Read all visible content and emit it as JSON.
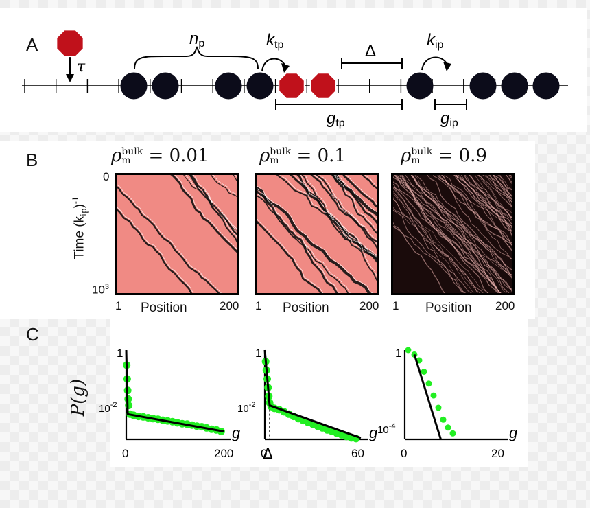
{
  "panel_a": {
    "letter": "A",
    "labels": {
      "tau": "τ",
      "n": "n",
      "n_sub": "p",
      "k_tp": "k",
      "k_tp_sub": "tp",
      "delta": "Δ",
      "k_ip": "k",
      "k_ip_sub": "ip",
      "g_tp": "g",
      "g_tp_sub": "tp",
      "g_ip": "g",
      "g_ip_sub": "ip"
    },
    "colors": {
      "octagon": "#c0111b",
      "particle": "#0c0c1a"
    }
  },
  "panel_b": {
    "letter": "B",
    "y_axis_label": "Time (k",
    "y_axis_sub": "ip",
    "y_axis_tail": ")",
    "y_axis_sup": "-1",
    "y_tick_top": "0",
    "y_tick_bottom": "10",
    "y_tick_bottom_sup": "3",
    "kymographs": [
      {
        "rho_symbol": "ρ",
        "rho_sup": "bulk",
        "rho_sub": "m",
        "value": "= 0.01",
        "xlabel": "Position",
        "x_left": "1",
        "x_right": "200",
        "bg": "#f08a84"
      },
      {
        "rho_symbol": "ρ",
        "rho_sup": "bulk",
        "rho_sub": "m",
        "value": "= 0.1",
        "xlabel": "Position",
        "x_left": "1",
        "x_right": "200",
        "bg": "#f08a84"
      },
      {
        "rho_symbol": "ρ",
        "rho_sup": "bulk",
        "rho_sub": "m",
        "value": "= 0.9",
        "xlabel": "Position",
        "x_left": "1",
        "x_right": "200",
        "bg": "#1a0b0b"
      }
    ]
  },
  "panel_c": {
    "letter": "C",
    "ylabel": "P(g)",
    "delta_label": "Δ",
    "colors": {
      "points": "#22ee22",
      "fit": "#000000"
    }
  },
  "chart_data": [
    {
      "type": "scatter",
      "title": "",
      "xlabel": "g",
      "ylabel": "P(g)",
      "y_scale": "log",
      "x_range": [
        0,
        200
      ],
      "y_range": [
        0.0008,
        1
      ],
      "x_tick_labels": [
        "0",
        "200"
      ],
      "y_tick_labels": [
        "1",
        "10-2"
      ],
      "points": [
        [
          1,
          0.3
        ],
        [
          2,
          0.1
        ],
        [
          3,
          0.04
        ],
        [
          4,
          0.02
        ],
        [
          5,
          0.012
        ],
        [
          8,
          0.006
        ],
        [
          15,
          0.0055
        ],
        [
          25,
          0.005
        ],
        [
          35,
          0.0048
        ],
        [
          45,
          0.0045
        ],
        [
          55,
          0.0042
        ],
        [
          65,
          0.004
        ],
        [
          75,
          0.0037
        ],
        [
          85,
          0.0035
        ],
        [
          95,
          0.0033
        ],
        [
          105,
          0.003
        ],
        [
          115,
          0.0028
        ],
        [
          125,
          0.0027
        ],
        [
          135,
          0.0025
        ],
        [
          145,
          0.0023
        ],
        [
          155,
          0.0022
        ],
        [
          165,
          0.002
        ],
        [
          175,
          0.0018
        ],
        [
          185,
          0.0017
        ],
        [
          195,
          0.0015
        ]
      ],
      "fit_line": [
        [
          0,
          1
        ],
        [
          3,
          0.006
        ],
        [
          200,
          0.0015
        ]
      ]
    },
    {
      "type": "scatter",
      "title": "",
      "xlabel": "g",
      "ylabel": "P(g)",
      "y_scale": "log",
      "x_range": [
        0,
        60
      ],
      "y_range": [
        0.0008,
        1
      ],
      "x_tick_labels": [
        "0",
        "60"
      ],
      "y_tick_labels": [
        "1",
        "10-2"
      ],
      "delta": 3,
      "points": [
        [
          0.5,
          0.4
        ],
        [
          1,
          0.2
        ],
        [
          1.5,
          0.1
        ],
        [
          2,
          0.05
        ],
        [
          2.5,
          0.025
        ],
        [
          3,
          0.015
        ],
        [
          4,
          0.011
        ],
        [
          6,
          0.0095
        ],
        [
          9,
          0.0085
        ],
        [
          12,
          0.0072
        ],
        [
          15,
          0.006
        ],
        [
          18,
          0.005
        ],
        [
          21,
          0.0042
        ],
        [
          24,
          0.0036
        ],
        [
          27,
          0.0031
        ],
        [
          30,
          0.0027
        ],
        [
          33,
          0.0023
        ],
        [
          36,
          0.002
        ],
        [
          39,
          0.0017
        ],
        [
          42,
          0.0015
        ],
        [
          45,
          0.0013
        ],
        [
          48,
          0.00115
        ],
        [
          51,
          0.001
        ],
        [
          54,
          0.0009
        ],
        [
          57,
          0.00085
        ]
      ],
      "fit_line": [
        [
          0,
          1
        ],
        [
          3,
          0.012
        ],
        [
          60,
          0.0009
        ]
      ]
    },
    {
      "type": "scatter",
      "title": "",
      "xlabel": "g",
      "ylabel": "P(g)",
      "y_scale": "log",
      "x_range": [
        0,
        20
      ],
      "y_range": [
        3e-05,
        1
      ],
      "x_tick_labels": [
        "0",
        "20"
      ],
      "y_tick_labels": [
        "1",
        "10-4"
      ],
      "points": [
        [
          0.7,
          1
        ],
        [
          2,
          0.6
        ],
        [
          3,
          0.3
        ],
        [
          4,
          0.08
        ],
        [
          5,
          0.02
        ],
        [
          6,
          0.005
        ],
        [
          7,
          0.0012
        ],
        [
          8,
          0.0003
        ],
        [
          9,
          0.00012
        ],
        [
          10,
          6e-05
        ]
      ],
      "fit_line": [
        [
          2,
          0.6
        ],
        [
          7.5,
          3e-05
        ]
      ]
    }
  ]
}
